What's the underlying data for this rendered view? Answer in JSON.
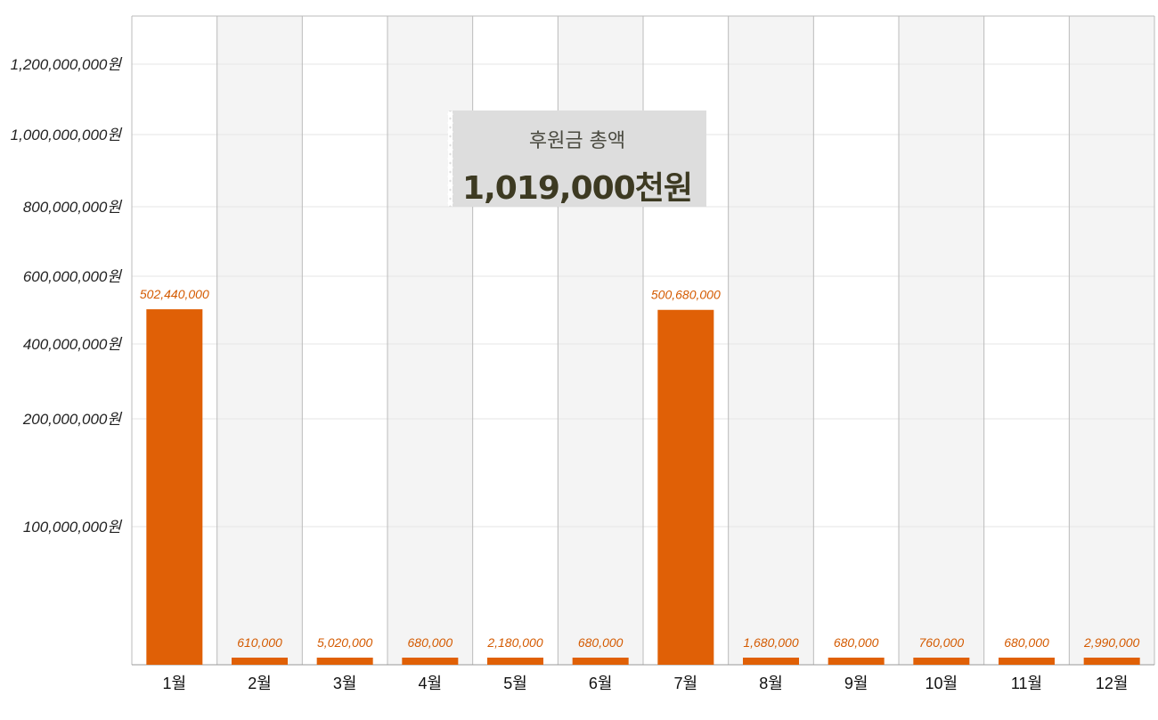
{
  "summary": {
    "title": "후원금 총액",
    "value": "1,019,000천원"
  },
  "chart_data": {
    "type": "bar",
    "categories": [
      "1월",
      "2월",
      "3월",
      "4월",
      "5월",
      "6월",
      "7월",
      "8월",
      "9월",
      "10월",
      "11월",
      "12월"
    ],
    "values": [
      502440000,
      610000,
      5020000,
      680000,
      2180000,
      680000,
      500680000,
      1680000,
      680000,
      760000,
      680000,
      2990000
    ],
    "value_labels": [
      "502,440,000",
      "610,000",
      "5,020,000",
      "680,000",
      "2,180,000",
      "680,000",
      "500,680,000",
      "1,680,000",
      "680,000",
      "760,000",
      "680,000",
      "2,990,000"
    ],
    "y_scale": "non-linear",
    "y_ticks": [
      {
        "value": 100000000,
        "label": "100,000,000원"
      },
      {
        "value": 200000000,
        "label": "200,000,000원"
      },
      {
        "value": 400000000,
        "label": "400,000,000원"
      },
      {
        "value": 600000000,
        "label": "600,000,000원"
      },
      {
        "value": 800000000,
        "label": "800,000,000원"
      },
      {
        "value": 1000000000,
        "label": "1,000,000,000원"
      },
      {
        "value": 1200000000,
        "label": "1,200,000,000원"
      }
    ],
    "ylim": [
      0,
      1300000000
    ],
    "grid": true,
    "colors": {
      "bar": "#e06006",
      "label": "#d45a00",
      "alt_band": "#f4f4f4"
    }
  }
}
